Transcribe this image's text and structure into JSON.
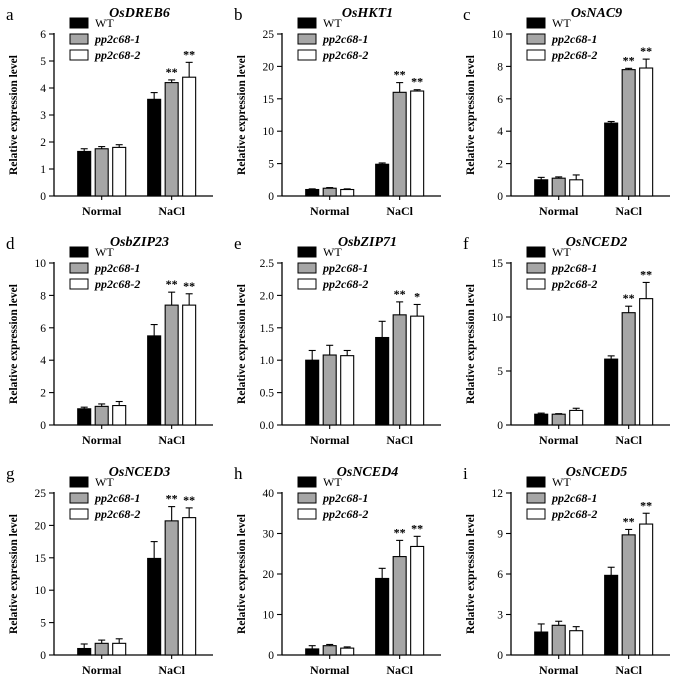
{
  "chart_data": [
    {
      "type": "bar",
      "panel_label": "a",
      "title": "OsDREB6",
      "ylabel": "Relative expression level",
      "xlabel": "",
      "categories": [
        "Normal",
        "NaCl"
      ],
      "ylim": [
        0,
        6
      ],
      "yticks": [
        "0",
        "1",
        "2",
        "3",
        "4",
        "5",
        "6"
      ],
      "tick_values": [
        0,
        1,
        2,
        3,
        4,
        5,
        6
      ],
      "legend": [
        "WT",
        "pp2c68-1",
        "pp2c68-2"
      ],
      "series": [
        {
          "name": "WT",
          "color": "#000000",
          "values": [
            1.65,
            3.58
          ],
          "errors": [
            0.1,
            0.25
          ],
          "sig": [
            "",
            ""
          ]
        },
        {
          "name": "pp2c68-1",
          "color": "#a6a6a6",
          "values": [
            1.75,
            4.2
          ],
          "errors": [
            0.08,
            0.1
          ],
          "sig": [
            "",
            "**"
          ]
        },
        {
          "name": "pp2c68-2",
          "color": "#ffffff",
          "values": [
            1.8,
            4.4
          ],
          "errors": [
            0.1,
            0.55
          ],
          "sig": [
            "",
            "**"
          ]
        }
      ]
    },
    {
      "type": "bar",
      "panel_label": "b",
      "title": "OsHKT1",
      "ylabel": "Relative expression level",
      "xlabel": "",
      "categories": [
        "Normal",
        "NaCl"
      ],
      "ylim": [
        0,
        25
      ],
      "yticks": [
        "0",
        "5",
        "10",
        "15",
        "20",
        "25"
      ],
      "tick_values": [
        0,
        5,
        10,
        15,
        20,
        25
      ],
      "legend": [
        "WT",
        "pp2c68-1",
        "pp2c68-2"
      ],
      "series": [
        {
          "name": "WT",
          "color": "#000000",
          "values": [
            1.0,
            4.9
          ],
          "errors": [
            0.1,
            0.2
          ],
          "sig": [
            "",
            ""
          ]
        },
        {
          "name": "pp2c68-1",
          "color": "#a6a6a6",
          "values": [
            1.2,
            16.0
          ],
          "errors": [
            0.1,
            1.5
          ],
          "sig": [
            "",
            "**"
          ]
        },
        {
          "name": "pp2c68-2",
          "color": "#ffffff",
          "values": [
            1.0,
            16.2
          ],
          "errors": [
            0.1,
            0.2
          ],
          "sig": [
            "",
            "**"
          ]
        }
      ]
    },
    {
      "type": "bar",
      "panel_label": "c",
      "title": "OsNAC9",
      "ylabel": "Relative expression level",
      "xlabel": "",
      "categories": [
        "Normal",
        "NaCl"
      ],
      "ylim": [
        0,
        10
      ],
      "yticks": [
        "0",
        "2",
        "4",
        "6",
        "8",
        "10"
      ],
      "tick_values": [
        0,
        2,
        4,
        6,
        8,
        10
      ],
      "legend": [
        "WT",
        "pp2c68-1",
        "pp2c68-2"
      ],
      "series": [
        {
          "name": "WT",
          "color": "#000000",
          "values": [
            1.0,
            4.5
          ],
          "errors": [
            0.15,
            0.1
          ],
          "sig": [
            "",
            ""
          ]
        },
        {
          "name": "pp2c68-1",
          "color": "#a6a6a6",
          "values": [
            1.1,
            7.8
          ],
          "errors": [
            0.08,
            0.08
          ],
          "sig": [
            "",
            "**"
          ]
        },
        {
          "name": "pp2c68-2",
          "color": "#ffffff",
          "values": [
            1.0,
            7.9
          ],
          "errors": [
            0.3,
            0.55
          ],
          "sig": [
            "",
            "**"
          ]
        }
      ]
    },
    {
      "type": "bar",
      "panel_label": "d",
      "title": "OsbZIP23",
      "ylabel": "Relative expression level",
      "xlabel": "",
      "categories": [
        "Normal",
        "NaCl"
      ],
      "ylim": [
        0,
        10
      ],
      "yticks": [
        "0",
        "2",
        "4",
        "6",
        "8",
        "10"
      ],
      "tick_values": [
        0,
        2,
        4,
        6,
        8,
        10
      ],
      "legend": [
        "WT",
        "pp2c68-1",
        "pp2c68-2"
      ],
      "series": [
        {
          "name": "WT",
          "color": "#000000",
          "values": [
            1.0,
            5.5
          ],
          "errors": [
            0.1,
            0.7
          ],
          "sig": [
            "",
            ""
          ]
        },
        {
          "name": "pp2c68-1",
          "color": "#a6a6a6",
          "values": [
            1.15,
            7.4
          ],
          "errors": [
            0.15,
            0.8
          ],
          "sig": [
            "",
            "**"
          ]
        },
        {
          "name": "pp2c68-2",
          "color": "#ffffff",
          "values": [
            1.2,
            7.4
          ],
          "errors": [
            0.25,
            0.7
          ],
          "sig": [
            "",
            "**"
          ]
        }
      ]
    },
    {
      "type": "bar",
      "panel_label": "e",
      "title": "OsbZIP71",
      "ylabel": "Relative expression level",
      "xlabel": "",
      "categories": [
        "Normal",
        "NaCl"
      ],
      "ylim": [
        0,
        2.5
      ],
      "yticks": [
        "0.0",
        "0.5",
        "1.0",
        "1.5",
        "2.0",
        "2.5"
      ],
      "tick_values": [
        0,
        0.5,
        1,
        1.5,
        2,
        2.5
      ],
      "legend": [
        "WT",
        "pp2c68-1",
        "pp2c68-2"
      ],
      "series": [
        {
          "name": "WT",
          "color": "#000000",
          "values": [
            1.0,
            1.35
          ],
          "errors": [
            0.15,
            0.25
          ],
          "sig": [
            "",
            ""
          ]
        },
        {
          "name": "pp2c68-1",
          "color": "#a6a6a6",
          "values": [
            1.08,
            1.7
          ],
          "errors": [
            0.15,
            0.2
          ],
          "sig": [
            "",
            "**"
          ]
        },
        {
          "name": "pp2c68-2",
          "color": "#ffffff",
          "values": [
            1.07,
            1.68
          ],
          "errors": [
            0.08,
            0.18
          ],
          "sig": [
            "",
            "*"
          ]
        }
      ]
    },
    {
      "type": "bar",
      "panel_label": "f",
      "title": "OsNCED2",
      "ylabel": "Relative expression level",
      "xlabel": "",
      "categories": [
        "Normal",
        "NaCl"
      ],
      "ylim": [
        0,
        15
      ],
      "yticks": [
        "0",
        "5",
        "10",
        "15"
      ],
      "tick_values": [
        0,
        5,
        10,
        15
      ],
      "legend": [
        "WT",
        "pp2c68-1",
        "pp2c68-2"
      ],
      "series": [
        {
          "name": "WT",
          "color": "#000000",
          "values": [
            1.0,
            6.1
          ],
          "errors": [
            0.1,
            0.3
          ],
          "sig": [
            "",
            ""
          ]
        },
        {
          "name": "pp2c68-1",
          "color": "#a6a6a6",
          "values": [
            1.0,
            10.4
          ],
          "errors": [
            0.05,
            0.6
          ],
          "sig": [
            "",
            "**"
          ]
        },
        {
          "name": "pp2c68-2",
          "color": "#ffffff",
          "values": [
            1.35,
            11.7
          ],
          "errors": [
            0.2,
            1.5
          ],
          "sig": [
            "",
            "**"
          ]
        }
      ]
    },
    {
      "type": "bar",
      "panel_label": "g",
      "title": "OsNCED3",
      "ylabel": "Relative expression level",
      "xlabel": "",
      "categories": [
        "Normal",
        "NaCl"
      ],
      "ylim": [
        0,
        25
      ],
      "yticks": [
        "0",
        "5",
        "10",
        "15",
        "20",
        "25"
      ],
      "tick_values": [
        0,
        5,
        10,
        15,
        20,
        25
      ],
      "legend": [
        "WT",
        "pp2c68-1",
        "pp2c68-2"
      ],
      "series": [
        {
          "name": "WT",
          "color": "#000000",
          "values": [
            1.0,
            14.9
          ],
          "errors": [
            0.7,
            2.6
          ],
          "sig": [
            "",
            ""
          ]
        },
        {
          "name": "pp2c68-1",
          "color": "#a6a6a6",
          "values": [
            1.8,
            20.7
          ],
          "errors": [
            0.5,
            2.2
          ],
          "sig": [
            "",
            "**"
          ]
        },
        {
          "name": "pp2c68-2",
          "color": "#ffffff",
          "values": [
            1.8,
            21.2
          ],
          "errors": [
            0.7,
            1.5
          ],
          "sig": [
            "",
            "**"
          ]
        }
      ]
    },
    {
      "type": "bar",
      "panel_label": "h",
      "title": "OsNCED4",
      "ylabel": "Relative expression level",
      "xlabel": "",
      "categories": [
        "Normal",
        "NaCl"
      ],
      "ylim": [
        0,
        40
      ],
      "yticks": [
        "0",
        "10",
        "20",
        "30",
        "40"
      ],
      "tick_values": [
        0,
        10,
        20,
        30,
        40
      ],
      "legend": [
        "WT",
        "pp2c68-1",
        "pp2c68-2"
      ],
      "series": [
        {
          "name": "WT",
          "color": "#000000",
          "values": [
            1.5,
            18.9
          ],
          "errors": [
            0.8,
            2.5
          ],
          "sig": [
            "",
            ""
          ]
        },
        {
          "name": "pp2c68-1",
          "color": "#a6a6a6",
          "values": [
            2.3,
            24.3
          ],
          "errors": [
            0.3,
            4.0
          ],
          "sig": [
            "",
            "**"
          ]
        },
        {
          "name": "pp2c68-2",
          "color": "#ffffff",
          "values": [
            1.7,
            26.8
          ],
          "errors": [
            0.3,
            2.5
          ],
          "sig": [
            "",
            "**"
          ]
        }
      ]
    },
    {
      "type": "bar",
      "panel_label": "i",
      "title": "OsNCED5",
      "ylabel": "Relative expression level",
      "xlabel": "",
      "categories": [
        "Normal",
        "NaCl"
      ],
      "ylim": [
        0,
        12
      ],
      "yticks": [
        "0",
        "3",
        "6",
        "9",
        "12"
      ],
      "tick_values": [
        0,
        3,
        6,
        9,
        12
      ],
      "legend": [
        "WT",
        "pp2c68-1",
        "pp2c68-2"
      ],
      "series": [
        {
          "name": "WT",
          "color": "#000000",
          "values": [
            1.7,
            5.9
          ],
          "errors": [
            0.6,
            0.6
          ],
          "sig": [
            "",
            ""
          ]
        },
        {
          "name": "pp2c68-1",
          "color": "#a6a6a6",
          "values": [
            2.2,
            8.9
          ],
          "errors": [
            0.3,
            0.4
          ],
          "sig": [
            "",
            "**"
          ]
        },
        {
          "name": "pp2c68-2",
          "color": "#ffffff",
          "values": [
            1.8,
            9.7
          ],
          "errors": [
            0.3,
            0.8
          ],
          "sig": [
            "",
            "**"
          ]
        }
      ]
    }
  ]
}
